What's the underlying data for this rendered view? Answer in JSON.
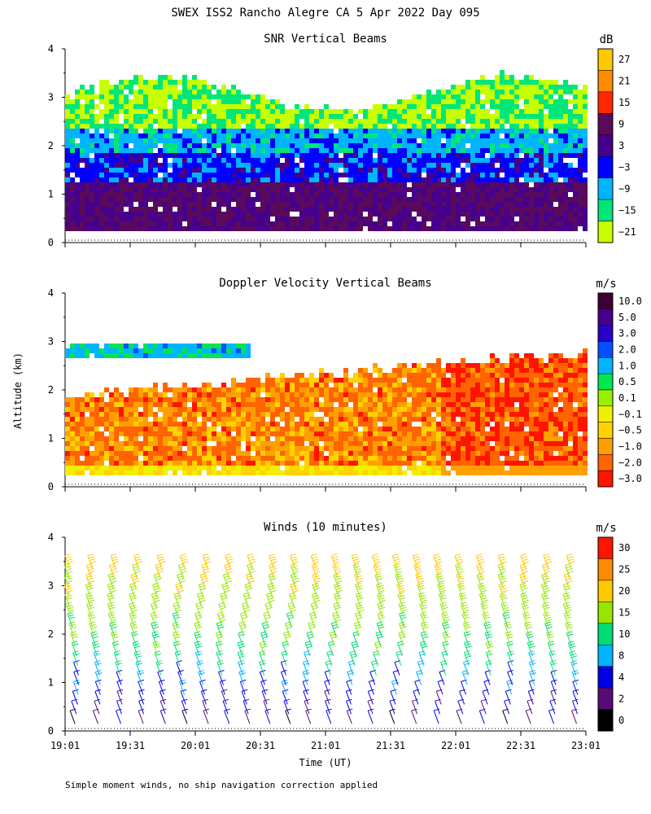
{
  "figure": {
    "title": "SWEX ISS2 Rancho Alegre CA   5 Apr 2022 Day 095",
    "footnote": "Simple moment winds, no ship navigation correction applied",
    "y_axis_label": "Altitude (km)",
    "x_axis_label": "Time (UT)"
  },
  "chart_data": [
    {
      "type": "heatmap",
      "title": "SNR Vertical Beams",
      "units": "dB",
      "ylabel": "Altitude (km)",
      "ylim": [
        0,
        4
      ],
      "yticks": [
        "0",
        "1",
        "2",
        "3",
        "4"
      ],
      "xlim_minutes_ut": [
        1141,
        1381
      ],
      "colorbar": {
        "labels": [
          "27",
          "21",
          "15",
          "9",
          "3",
          "−3",
          "−9",
          "−15",
          "−21"
        ],
        "colors": [
          "#ffc800",
          "#ff8c00",
          "#ff2800",
          "#5a0a5a",
          "#46008c",
          "#0000ff",
          "#00b4ff",
          "#00e678",
          "#c8ff00"
        ]
      },
      "description_fields": {
        "data_top_km": 3.3,
        "layers": [
          {
            "alt_km": [
              0.15,
              1.2
            ],
            "db": 6
          },
          {
            "alt_km": [
              1.2,
              1.8
            ],
            "db": -3
          },
          {
            "alt_km": [
              1.8,
              2.3
            ],
            "db": -9
          },
          {
            "alt_km": [
              2.3,
              3.1
            ],
            "db": -18
          }
        ]
      }
    },
    {
      "type": "heatmap",
      "title": "Doppler Velocity Vertical Beams",
      "units": "m/s",
      "ylabel": "Altitude (km)",
      "ylim": [
        0,
        4
      ],
      "yticks": [
        "0",
        "1",
        "2",
        "3",
        "4"
      ],
      "xlim_minutes_ut": [
        1141,
        1381
      ],
      "colorbar": {
        "labels": [
          "10.0",
          "5.0",
          "3.0",
          "2.0",
          "1.0",
          "0.5",
          "0.1",
          "−0.1",
          "−0.5",
          "−1.0",
          "−2.0",
          "−3.0"
        ],
        "colors": [
          "#3c0032",
          "#46008c",
          "#2800c8",
          "#0050ff",
          "#00b4ff",
          "#00e650",
          "#96f000",
          "#f0f000",
          "#ffd200",
          "#ffa000",
          "#ff6400",
          "#ff1400"
        ]
      },
      "description_fields": {
        "typical_velocity_m_s": -1.5,
        "upper_layer_km": [
          2.6,
          2.9
        ],
        "upper_layer_velocity_m_s": 1.0
      }
    },
    {
      "type": "scatter",
      "title": "Winds (10 minutes)",
      "units": "m/s",
      "ylabel": "Altitude (km)",
      "xlabel": "Time (UT)",
      "ylim": [
        0,
        4
      ],
      "yticks": [
        "0",
        "1",
        "2",
        "3",
        "4"
      ],
      "xticks": [
        "19:01",
        "19:31",
        "20:01",
        "20:31",
        "21:01",
        "21:31",
        "22:01",
        "22:31",
        "23:01"
      ],
      "xlim_minutes_ut": [
        1141,
        1381
      ],
      "colorbar": {
        "labels": [
          "30",
          "25",
          "20",
          "15",
          "10",
          "8",
          "4",
          "2",
          "0"
        ],
        "colors": [
          "#ff1400",
          "#ff8c00",
          "#ffc800",
          "#96e600",
          "#00dc78",
          "#00b4ff",
          "#0000e6",
          "#5a0a78",
          "#000000"
        ]
      },
      "wind_profiles": {
        "times_minutes_ut": [
          1145,
          1155,
          1165,
          1175,
          1185,
          1195,
          1205,
          1215,
          1225,
          1235,
          1245,
          1255,
          1265,
          1275,
          1285,
          1295,
          1305,
          1315,
          1325,
          1335,
          1345,
          1355,
          1365,
          1375
        ],
        "altitudes_km": [
          0.15,
          0.35,
          0.55,
          0.75,
          0.95,
          1.15,
          1.35,
          1.55,
          1.75,
          1.95,
          2.15,
          2.35,
          2.55,
          2.75,
          2.95,
          3.15,
          3.35
        ],
        "speed_m_s_by_altitude": [
          3,
          4,
          5,
          6,
          7,
          9,
          11,
          13,
          14,
          15,
          16,
          17,
          17,
          18,
          19,
          20,
          22
        ]
      }
    }
  ]
}
